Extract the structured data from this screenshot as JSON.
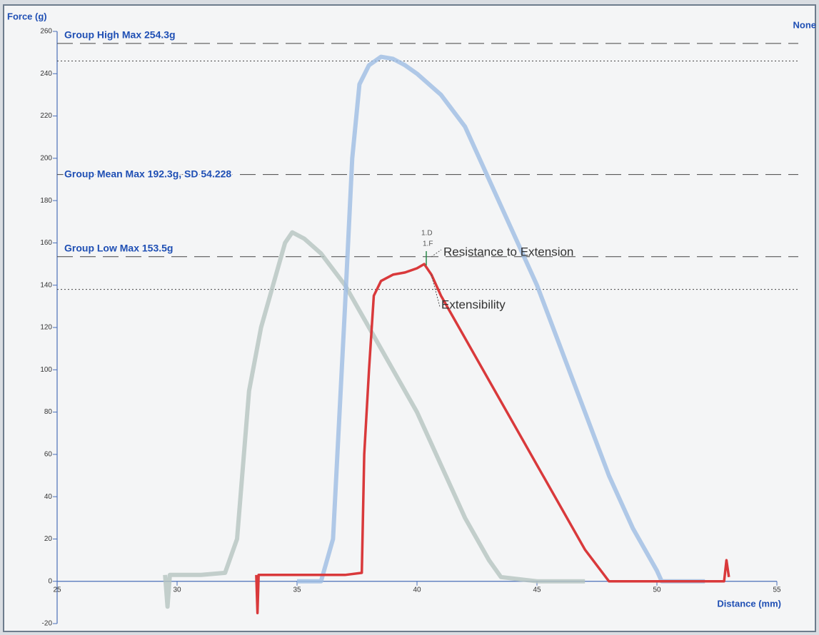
{
  "chart_data": {
    "type": "line",
    "y_label": "Force (g)",
    "x_label": "Distance (mm)",
    "corner_text": "None",
    "xlim": [
      25,
      55
    ],
    "xticks": [
      25,
      30,
      35,
      40,
      45,
      50,
      55
    ],
    "ylim": [
      -20,
      260
    ],
    "yticks": [
      -20,
      0,
      20,
      40,
      60,
      80,
      100,
      120,
      140,
      160,
      180,
      200,
      220,
      240,
      260
    ],
    "reference_lines": [
      {
        "label": "Group High Max 254.3g",
        "value": 254.3,
        "style": "dashed"
      },
      {
        "value": 246,
        "style": "dotted"
      },
      {
        "label": "Group Mean Max 192.3g, SD 54.228",
        "value": 192.3,
        "style": "dashed"
      },
      {
        "label": "Group Low Max 153.5g",
        "value": 153.5,
        "style": "dashed"
      },
      {
        "value": 138,
        "style": "dotted"
      }
    ],
    "annotations": [
      "1.D",
      "1.F",
      "Resistance to Extension",
      "Extensibility"
    ],
    "series": [
      {
        "color": "#b5c4c0",
        "x": [
          29.5,
          29.6,
          29.7,
          30,
          31,
          32,
          32.5,
          33,
          33.5,
          34,
          34.5,
          34.8,
          35.3,
          36,
          37,
          38,
          39,
          40,
          41,
          42,
          43,
          43.5,
          45,
          47
        ],
        "values": [
          3,
          -12,
          3,
          3,
          3,
          4,
          20,
          90,
          120,
          140,
          160,
          165,
          162,
          155,
          140,
          120,
          100,
          80,
          55,
          30,
          10,
          2,
          0,
          0
        ]
      },
      {
        "color": "#9dbde3",
        "x": [
          35,
          36,
          36.5,
          37,
          37.3,
          37.6,
          38,
          38.5,
          39,
          39.5,
          40,
          41,
          42,
          43,
          44,
          45,
          46,
          47,
          48,
          49,
          50,
          50.2,
          52
        ],
        "values": [
          0,
          0,
          20,
          130,
          200,
          235,
          244,
          248,
          247,
          244,
          240,
          230,
          215,
          190,
          165,
          140,
          110,
          80,
          50,
          25,
          5,
          0,
          0
        ]
      },
      {
        "color": "#d9393b",
        "x": [
          33.3,
          33.35,
          33.4,
          33.5,
          34,
          35,
          36,
          37,
          37.7,
          37.8,
          38,
          38.2,
          38.5,
          39,
          39.5,
          40,
          40.3,
          40.6,
          41,
          42,
          43,
          44,
          45,
          46,
          47,
          47.8,
          48,
          50,
          52.8,
          52.9,
          53
        ],
        "values": [
          3,
          -15,
          3,
          3,
          3,
          3,
          3,
          3,
          4,
          60,
          100,
          135,
          142,
          145,
          146,
          148,
          150,
          145,
          135,
          115,
          95,
          75,
          55,
          35,
          15,
          3,
          0,
          0,
          0,
          10,
          2
        ]
      }
    ]
  }
}
